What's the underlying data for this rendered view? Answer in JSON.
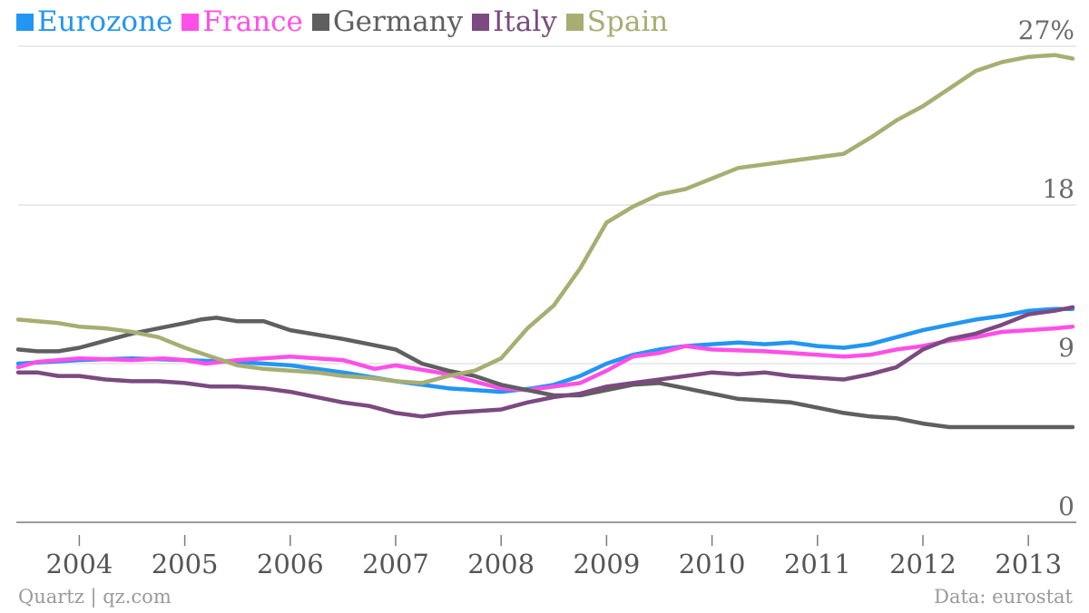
{
  "legend": [
    {
      "name": "Eurozone",
      "color": "#2196f3"
    },
    {
      "name": "France",
      "color": "#ff4fe8"
    },
    {
      "name": "Germany",
      "color": "#5f5f5f"
    },
    {
      "name": "Italy",
      "color": "#7b4a80"
    },
    {
      "name": "Spain",
      "color": "#a8ad72"
    }
  ],
  "footer": {
    "source_left": "Quartz | qz.com",
    "source_right": "Data: eurostat"
  },
  "chart_data": {
    "type": "line",
    "title": "",
    "xlabel": "",
    "ylabel": "",
    "x_unit": "year",
    "xlim": [
      2003.42,
      2013.42
    ],
    "ylim": [
      0,
      27
    ],
    "y_ticks": [
      {
        "value": 0,
        "label": "0"
      },
      {
        "value": 9,
        "label": "9"
      },
      {
        "value": 18,
        "label": "18"
      },
      {
        "value": 27,
        "label": "27%"
      }
    ],
    "x_ticks": [
      {
        "value": 2004,
        "label": "2004"
      },
      {
        "value": 2005,
        "label": "2005"
      },
      {
        "value": 2006,
        "label": "2006"
      },
      {
        "value": 2007,
        "label": "2007"
      },
      {
        "value": 2008,
        "label": "2008"
      },
      {
        "value": 2009,
        "label": "2009"
      },
      {
        "value": 2010,
        "label": "2010"
      },
      {
        "value": 2011,
        "label": "2011"
      },
      {
        "value": 2012,
        "label": "2012"
      },
      {
        "value": 2013,
        "label": "2013"
      }
    ],
    "grid": true,
    "legend_position": "top-left",
    "series": [
      {
        "name": "Eurozone",
        "color": "#2196f3",
        "points": [
          [
            2003.42,
            9.0
          ],
          [
            2004.0,
            9.2
          ],
          [
            2004.5,
            9.3
          ],
          [
            2005.0,
            9.2
          ],
          [
            2005.5,
            9.1
          ],
          [
            2006.0,
            8.9
          ],
          [
            2006.5,
            8.5
          ],
          [
            2007.0,
            8.0
          ],
          [
            2007.5,
            7.6
          ],
          [
            2008.0,
            7.4
          ],
          [
            2008.3,
            7.6
          ],
          [
            2008.5,
            7.8
          ],
          [
            2008.75,
            8.3
          ],
          [
            2009.0,
            9.0
          ],
          [
            2009.25,
            9.5
          ],
          [
            2009.5,
            9.8
          ],
          [
            2009.75,
            10.0
          ],
          [
            2010.0,
            10.1
          ],
          [
            2010.25,
            10.2
          ],
          [
            2010.5,
            10.1
          ],
          [
            2010.75,
            10.2
          ],
          [
            2011.0,
            10.0
          ],
          [
            2011.25,
            9.9
          ],
          [
            2011.5,
            10.1
          ],
          [
            2011.75,
            10.5
          ],
          [
            2012.0,
            10.9
          ],
          [
            2012.25,
            11.2
          ],
          [
            2012.5,
            11.5
          ],
          [
            2012.75,
            11.7
          ],
          [
            2013.0,
            12.0
          ],
          [
            2013.25,
            12.1
          ],
          [
            2013.42,
            12.1
          ]
        ]
      },
      {
        "name": "France",
        "color": "#ff4fe8",
        "points": [
          [
            2003.42,
            8.8
          ],
          [
            2003.6,
            9.1
          ],
          [
            2004.0,
            9.3
          ],
          [
            2004.5,
            9.2
          ],
          [
            2004.8,
            9.3
          ],
          [
            2005.0,
            9.2
          ],
          [
            2005.2,
            9.0
          ],
          [
            2005.5,
            9.2
          ],
          [
            2006.0,
            9.4
          ],
          [
            2006.5,
            9.2
          ],
          [
            2006.8,
            8.7
          ],
          [
            2007.0,
            8.9
          ],
          [
            2007.5,
            8.4
          ],
          [
            2007.8,
            7.9
          ],
          [
            2008.0,
            7.6
          ],
          [
            2008.25,
            7.5
          ],
          [
            2008.5,
            7.7
          ],
          [
            2008.75,
            7.9
          ],
          [
            2009.0,
            8.6
          ],
          [
            2009.25,
            9.4
          ],
          [
            2009.5,
            9.6
          ],
          [
            2009.75,
            10.0
          ],
          [
            2010.0,
            9.8
          ],
          [
            2010.5,
            9.7
          ],
          [
            2010.75,
            9.6
          ],
          [
            2011.0,
            9.5
          ],
          [
            2011.25,
            9.4
          ],
          [
            2011.5,
            9.5
          ],
          [
            2011.75,
            9.8
          ],
          [
            2012.0,
            10.0
          ],
          [
            2012.25,
            10.3
          ],
          [
            2012.5,
            10.5
          ],
          [
            2012.75,
            10.8
          ],
          [
            2013.0,
            10.9
          ],
          [
            2013.25,
            11.0
          ],
          [
            2013.42,
            11.1
          ]
        ]
      },
      {
        "name": "Germany",
        "color": "#5f5f5f",
        "points": [
          [
            2003.42,
            9.8
          ],
          [
            2003.6,
            9.7
          ],
          [
            2003.8,
            9.7
          ],
          [
            2004.0,
            9.9
          ],
          [
            2004.25,
            10.3
          ],
          [
            2004.5,
            10.7
          ],
          [
            2004.75,
            11.0
          ],
          [
            2005.0,
            11.3
          ],
          [
            2005.15,
            11.5
          ],
          [
            2005.3,
            11.6
          ],
          [
            2005.5,
            11.4
          ],
          [
            2005.75,
            11.4
          ],
          [
            2006.0,
            10.9
          ],
          [
            2006.5,
            10.4
          ],
          [
            2006.75,
            10.1
          ],
          [
            2007.0,
            9.8
          ],
          [
            2007.25,
            9.0
          ],
          [
            2007.5,
            8.6
          ],
          [
            2007.75,
            8.3
          ],
          [
            2008.0,
            7.8
          ],
          [
            2008.25,
            7.5
          ],
          [
            2008.5,
            7.2
          ],
          [
            2008.75,
            7.2
          ],
          [
            2009.0,
            7.5
          ],
          [
            2009.25,
            7.8
          ],
          [
            2009.5,
            7.9
          ],
          [
            2009.75,
            7.6
          ],
          [
            2010.0,
            7.3
          ],
          [
            2010.25,
            7.0
          ],
          [
            2010.5,
            6.9
          ],
          [
            2010.75,
            6.8
          ],
          [
            2011.0,
            6.5
          ],
          [
            2011.25,
            6.2
          ],
          [
            2011.5,
            6.0
          ],
          [
            2011.75,
            5.9
          ],
          [
            2012.0,
            5.6
          ],
          [
            2012.25,
            5.4
          ],
          [
            2012.5,
            5.4
          ],
          [
            2012.75,
            5.4
          ],
          [
            2013.0,
            5.4
          ],
          [
            2013.25,
            5.4
          ],
          [
            2013.42,
            5.4
          ]
        ]
      },
      {
        "name": "Italy",
        "color": "#7b4a80",
        "points": [
          [
            2003.42,
            8.5
          ],
          [
            2003.6,
            8.5
          ],
          [
            2003.8,
            8.3
          ],
          [
            2004.0,
            8.3
          ],
          [
            2004.25,
            8.1
          ],
          [
            2004.5,
            8.0
          ],
          [
            2004.75,
            8.0
          ],
          [
            2005.0,
            7.9
          ],
          [
            2005.25,
            7.7
          ],
          [
            2005.5,
            7.7
          ],
          [
            2005.75,
            7.6
          ],
          [
            2006.0,
            7.4
          ],
          [
            2006.25,
            7.1
          ],
          [
            2006.5,
            6.8
          ],
          [
            2006.75,
            6.6
          ],
          [
            2007.0,
            6.2
          ],
          [
            2007.25,
            6.0
          ],
          [
            2007.5,
            6.2
          ],
          [
            2007.75,
            6.3
          ],
          [
            2008.0,
            6.4
          ],
          [
            2008.25,
            6.8
          ],
          [
            2008.5,
            7.1
          ],
          [
            2008.75,
            7.3
          ],
          [
            2009.0,
            7.7
          ],
          [
            2009.25,
            7.9
          ],
          [
            2009.5,
            8.1
          ],
          [
            2009.75,
            8.3
          ],
          [
            2010.0,
            8.5
          ],
          [
            2010.25,
            8.4
          ],
          [
            2010.5,
            8.5
          ],
          [
            2010.75,
            8.3
          ],
          [
            2011.0,
            8.2
          ],
          [
            2011.25,
            8.1
          ],
          [
            2011.5,
            8.4
          ],
          [
            2011.75,
            8.8
          ],
          [
            2012.0,
            9.8
          ],
          [
            2012.25,
            10.4
          ],
          [
            2012.5,
            10.7
          ],
          [
            2012.75,
            11.2
          ],
          [
            2013.0,
            11.8
          ],
          [
            2013.25,
            12.0
          ],
          [
            2013.42,
            12.2
          ]
        ]
      },
      {
        "name": "Spain",
        "color": "#a8ad72",
        "points": [
          [
            2003.42,
            11.5
          ],
          [
            2003.6,
            11.4
          ],
          [
            2003.8,
            11.3
          ],
          [
            2004.0,
            11.1
          ],
          [
            2004.25,
            11.0
          ],
          [
            2004.5,
            10.8
          ],
          [
            2004.75,
            10.5
          ],
          [
            2005.0,
            9.9
          ],
          [
            2005.25,
            9.4
          ],
          [
            2005.5,
            8.9
          ],
          [
            2005.75,
            8.7
          ],
          [
            2006.0,
            8.6
          ],
          [
            2006.25,
            8.5
          ],
          [
            2006.5,
            8.3
          ],
          [
            2006.75,
            8.2
          ],
          [
            2007.0,
            8.0
          ],
          [
            2007.25,
            7.9
          ],
          [
            2007.5,
            8.3
          ],
          [
            2007.75,
            8.6
          ],
          [
            2008.0,
            9.3
          ],
          [
            2008.25,
            11.0
          ],
          [
            2008.5,
            12.3
          ],
          [
            2008.75,
            14.4
          ],
          [
            2009.0,
            17.0
          ],
          [
            2009.25,
            17.9
          ],
          [
            2009.5,
            18.6
          ],
          [
            2009.75,
            18.9
          ],
          [
            2010.0,
            19.5
          ],
          [
            2010.25,
            20.1
          ],
          [
            2010.5,
            20.3
          ],
          [
            2010.75,
            20.5
          ],
          [
            2011.0,
            20.7
          ],
          [
            2011.25,
            20.9
          ],
          [
            2011.5,
            21.8
          ],
          [
            2011.75,
            22.8
          ],
          [
            2012.0,
            23.6
          ],
          [
            2012.25,
            24.6
          ],
          [
            2012.5,
            25.6
          ],
          [
            2012.75,
            26.1
          ],
          [
            2013.0,
            26.4
          ],
          [
            2013.25,
            26.5
          ],
          [
            2013.42,
            26.3
          ]
        ]
      }
    ]
  }
}
